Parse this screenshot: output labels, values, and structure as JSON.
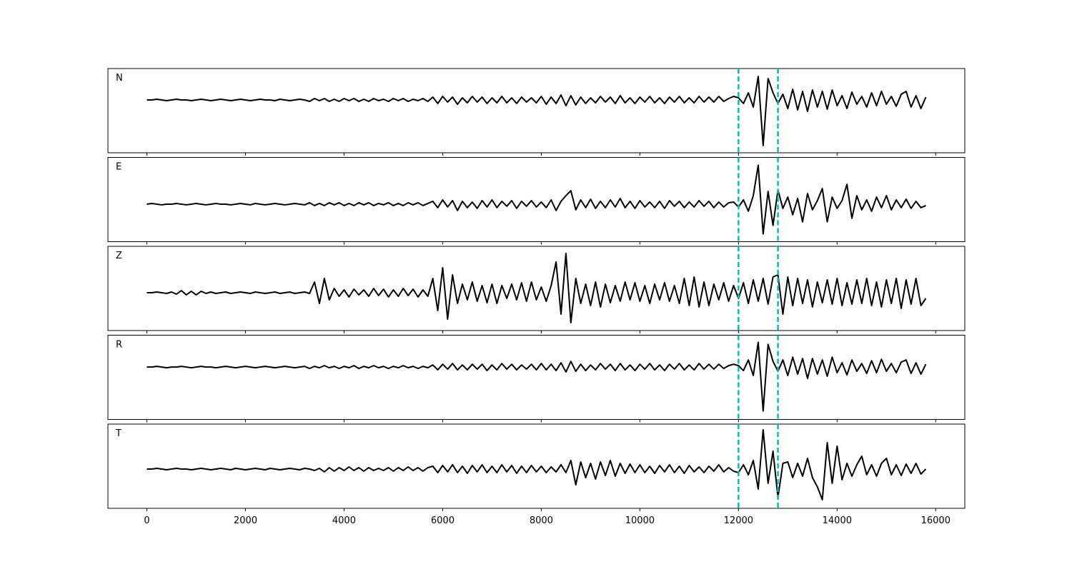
{
  "chart_data": {
    "type": "line",
    "x": [
      0,
      100,
      200,
      300,
      400,
      500,
      600,
      700,
      800,
      900,
      1000,
      1100,
      1200,
      1300,
      1400,
      1500,
      1600,
      1700,
      1800,
      1900,
      2000,
      2100,
      2200,
      2300,
      2400,
      2500,
      2600,
      2700,
      2800,
      2900,
      3000,
      3100,
      3200,
      3300,
      3400,
      3500,
      3600,
      3700,
      3800,
      3900,
      4000,
      4100,
      4200,
      4300,
      4400,
      4500,
      4600,
      4700,
      4800,
      4900,
      5000,
      5100,
      5200,
      5300,
      5400,
      5500,
      5600,
      5700,
      5800,
      5900,
      6000,
      6100,
      6200,
      6300,
      6400,
      6500,
      6600,
      6700,
      6800,
      6900,
      7000,
      7100,
      7200,
      7300,
      7400,
      7500,
      7600,
      7700,
      7800,
      7900,
      8000,
      8100,
      8200,
      8300,
      8400,
      8500,
      8600,
      8700,
      8800,
      8900,
      9000,
      9100,
      9200,
      9300,
      9400,
      9500,
      9600,
      9700,
      9800,
      9900,
      10000,
      10100,
      10200,
      10300,
      10400,
      10500,
      10600,
      10700,
      10800,
      10900,
      11000,
      11100,
      11200,
      11300,
      11400,
      11500,
      11600,
      11700,
      11800,
      11900,
      12000,
      12100,
      12200,
      12300,
      12400,
      12500,
      12600,
      12700,
      12800,
      12900,
      13000,
      13100,
      13200,
      13300,
      13400,
      13500,
      13600,
      13700,
      13800,
      13900,
      14000,
      14100,
      14200,
      14300,
      14400,
      14500,
      14600,
      14700,
      14800,
      14900,
      15000,
      15100,
      15200,
      15300,
      15400,
      15500,
      15600,
      15700,
      15800
    ],
    "xlim": [
      -790,
      16590
    ],
    "xticks": [
      0,
      2000,
      4000,
      6000,
      8000,
      10000,
      12000,
      14000,
      16000
    ],
    "vlines": [
      12000,
      12800
    ],
    "vline_color": "#00bfbf",
    "panels": [
      {
        "label": "N",
        "ylim": [
          -74,
          44
        ],
        "series": [
          {
            "color": "#000000",
            "values": [
              0,
              0,
              1,
              0,
              -1,
              0,
              1,
              0,
              0,
              -1,
              0,
              1,
              0,
              -1,
              0,
              1,
              0,
              -1,
              0,
              1,
              0,
              -1,
              0,
              1,
              0,
              0,
              -1,
              1,
              0,
              -1,
              0,
              1,
              0,
              -2,
              2,
              -1,
              2,
              -2,
              1,
              -2,
              2,
              -1,
              2,
              -2,
              1,
              -2,
              2,
              -1,
              1,
              -2,
              2,
              -1,
              2,
              -2,
              1,
              -1,
              2,
              -2,
              4,
              -5,
              5,
              -3,
              4,
              -6,
              3,
              -4,
              5,
              -3,
              4,
              -5,
              3,
              -4,
              5,
              -4,
              3,
              -5,
              4,
              -3,
              3,
              -4,
              5,
              -6,
              4,
              -5,
              7,
              -8,
              6,
              -7,
              4,
              -5,
              3,
              -4,
              5,
              -3,
              4,
              -5,
              6,
              -4,
              3,
              -5,
              4,
              -3,
              5,
              -4,
              3,
              -5,
              4,
              -3,
              5,
              -4,
              3,
              -4,
              5,
              -3,
              4,
              -3,
              5,
              -2,
              2,
              5,
              3,
              -5,
              10,
              -10,
              33,
              -64,
              30,
              10,
              -5,
              8,
              -12,
              15,
              -14,
              12,
              -16,
              14,
              -10,
              12,
              -13,
              14,
              -8,
              6,
              -12,
              11,
              -6,
              5,
              -10,
              10,
              -8,
              12,
              -6,
              5,
              -9,
              8,
              12,
              -10,
              6,
              -12,
              4
            ]
          }
        ]
      },
      {
        "label": "E",
        "ylim": [
          -53,
          66
        ],
        "series": [
          {
            "color": "#000000",
            "values": [
              0,
              1,
              0,
              -1,
              0,
              0,
              1,
              0,
              -1,
              0,
              1,
              0,
              -1,
              0,
              1,
              0,
              0,
              -1,
              0,
              1,
              0,
              -1,
              1,
              0,
              -1,
              0,
              1,
              0,
              -1,
              0,
              1,
              0,
              -1,
              2,
              -2,
              1,
              -2,
              2,
              -1,
              2,
              -2,
              1,
              -2,
              2,
              -1,
              2,
              -2,
              1,
              -1,
              2,
              -2,
              1,
              -2,
              2,
              -1,
              2,
              -2,
              1,
              4,
              -5,
              6,
              -4,
              5,
              -9,
              4,
              -5,
              3,
              -6,
              5,
              -4,
              6,
              -5,
              4,
              -3,
              5,
              -6,
              4,
              -3,
              5,
              -4,
              3,
              -5,
              6,
              -9,
              4,
              12,
              19,
              -8,
              6,
              -5,
              7,
              -6,
              4,
              -5,
              6,
              -4,
              8,
              -5,
              4,
              -6,
              5,
              -4,
              3,
              -5,
              4,
              -6,
              5,
              -3,
              4,
              -5,
              3,
              -4,
              5,
              -3,
              4,
              -5,
              3,
              -4,
              2,
              3,
              -4,
              6,
              -10,
              12,
              55,
              -42,
              18,
              -30,
              20,
              -6,
              10,
              -15,
              8,
              -25,
              15,
              -8,
              5,
              22,
              -25,
              10,
              -6,
              5,
              28,
              -20,
              12,
              -8,
              6,
              -10,
              10,
              -5,
              12,
              -8,
              6,
              -5,
              7,
              -6,
              4,
              -5,
              -2
            ]
          }
        ]
      },
      {
        "label": "Z",
        "ylim": [
          -53,
          65
        ],
        "series": [
          {
            "color": "#000000",
            "values": [
              0,
              0,
              1,
              0,
              -1,
              1,
              -2,
              3,
              -3,
              2,
              -3,
              2,
              -1,
              1,
              -1,
              0,
              1,
              -1,
              0,
              1,
              0,
              -1,
              1,
              0,
              -1,
              0,
              1,
              -1,
              0,
              1,
              -1,
              0,
              1,
              -1,
              15,
              -15,
              20,
              -10,
              6,
              -5,
              4,
              -6,
              5,
              -3,
              4,
              -5,
              6,
              -4,
              5,
              -6,
              4,
              -5,
              6,
              -4,
              5,
              -6,
              4,
              -5,
              20,
              -25,
              35,
              -37,
              25,
              -15,
              12,
              -10,
              15,
              -12,
              10,
              -14,
              12,
              -15,
              10,
              -8,
              12,
              -10,
              14,
              -12,
              15,
              -10,
              8,
              -12,
              10,
              43,
              -30,
              55,
              -42,
              20,
              -15,
              12,
              -18,
              15,
              -20,
              12,
              -14,
              10,
              -12,
              15,
              -10,
              14,
              -12,
              10,
              -15,
              12,
              -10,
              14,
              -12,
              10,
              -15,
              20,
              -18,
              22,
              -20,
              15,
              -18,
              12,
              -10,
              14,
              -12,
              10,
              -8,
              14,
              -15,
              18,
              -12,
              20,
              -16,
              22,
              25,
              -30,
              22,
              -18,
              20,
              -15,
              18,
              -20,
              15,
              -14,
              18,
              -16,
              20,
              -18,
              14,
              -16,
              18,
              -15,
              20,
              -18,
              15,
              -20,
              18,
              -15,
              20,
              -22,
              18,
              -16,
              20,
              -18,
              -8
            ]
          }
        ]
      },
      {
        "label": "R",
        "ylim": [
          -74,
          45
        ],
        "series": [
          {
            "color": "#000000",
            "values": [
              0,
              0,
              1,
              0,
              -1,
              0,
              0,
              1,
              0,
              -1,
              0,
              1,
              0,
              0,
              -1,
              0,
              1,
              0,
              -1,
              0,
              1,
              0,
              -1,
              0,
              1,
              0,
              -1,
              0,
              1,
              0,
              -1,
              0,
              1,
              -2,
              1,
              -1,
              2,
              -1,
              1,
              -2,
              1,
              -1,
              2,
              -2,
              1,
              -1,
              2,
              -1,
              1,
              -2,
              1,
              -1,
              2,
              -1,
              1,
              -2,
              1,
              -1,
              3,
              -4,
              4,
              -3,
              5,
              -4,
              3,
              -4,
              4,
              -3,
              4,
              -5,
              3,
              -4,
              5,
              -3,
              4,
              -4,
              3,
              -3,
              4,
              -4,
              5,
              -4,
              4,
              -5,
              6,
              -7,
              8,
              -6,
              4,
              -5,
              3,
              -4,
              5,
              -3,
              4,
              -5,
              5,
              -4,
              3,
              -5,
              4,
              -3,
              5,
              -4,
              3,
              -5,
              4,
              -3,
              5,
              -4,
              3,
              -4,
              5,
              -3,
              4,
              -3,
              4,
              -2,
              2,
              4,
              2,
              -5,
              10,
              -12,
              35,
              -62,
              32,
              8,
              -6,
              10,
              -12,
              14,
              -10,
              12,
              -16,
              12,
              -10,
              10,
              -13,
              14,
              -8,
              6,
              -11,
              10,
              -6,
              5,
              -9,
              9,
              -8,
              11,
              -6,
              5,
              -8,
              7,
              10,
              -9,
              6,
              -10,
              4
            ]
          }
        ]
      },
      {
        "label": "T",
        "ylim": [
          -55,
          63
        ],
        "series": [
          {
            "color": "#000000",
            "values": [
              0,
              0,
              1,
              0,
              -1,
              0,
              1,
              0,
              0,
              -1,
              0,
              1,
              0,
              -1,
              0,
              1,
              0,
              -1,
              1,
              0,
              -1,
              0,
              1,
              0,
              -1,
              1,
              0,
              -1,
              0,
              1,
              0,
              -1,
              1,
              0,
              -2,
              1,
              -4,
              2,
              -3,
              2,
              -2,
              3,
              -2,
              2,
              -3,
              2,
              -2,
              1,
              -2,
              2,
              -3,
              2,
              -2,
              3,
              -2,
              2,
              -3,
              2,
              4,
              -5,
              5,
              -4,
              6,
              -5,
              4,
              -6,
              5,
              -4,
              6,
              -5,
              4,
              -5,
              6,
              -4,
              5,
              -6,
              4,
              -5,
              5,
              -4,
              4,
              -5,
              3,
              -4,
              6,
              -5,
              12,
              -22,
              10,
              -12,
              8,
              -14,
              10,
              -9,
              12,
              -10,
              8,
              -6,
              7,
              -5,
              6,
              -5,
              4,
              -6,
              5,
              -4,
              6,
              -5,
              4,
              -6,
              5,
              -4,
              3,
              -5,
              4,
              -3,
              6,
              -4,
              2,
              -3,
              -5,
              6,
              -8,
              12,
              -28,
              55,
              -20,
              25,
              -40,
              8,
              10,
              -12,
              8,
              -10,
              15,
              -12,
              -25,
              -43,
              37,
              -20,
              32,
              -15,
              8,
              -10,
              6,
              18,
              -8,
              6,
              -10,
              8,
              15,
              -8,
              6,
              -9,
              7,
              -6,
              8,
              -7,
              0
            ]
          }
        ]
      }
    ]
  }
}
